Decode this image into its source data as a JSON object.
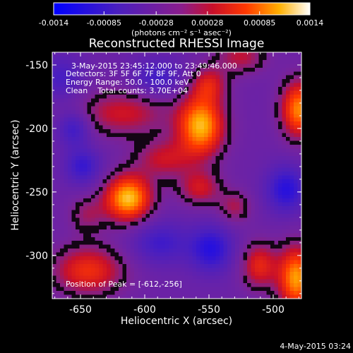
{
  "chart_data": {
    "type": "heatmap",
    "title": "Reconstructed RHESSI Image",
    "xlabel": "Heliocentric X (arcsec)",
    "ylabel": "Heliocentric Y (arcsec)",
    "xlim": [
      -672,
      -478
    ],
    "ylim": [
      -334,
      -140
    ],
    "x_ticks": [
      -650,
      -600,
      -550,
      -500
    ],
    "x_tick_labels": [
      "-650",
      "-600",
      "-550",
      "-500"
    ],
    "y_ticks": [
      -150,
      -200,
      -250,
      -300
    ],
    "y_tick_labels": [
      "-150",
      "-200",
      "-250",
      "-300"
    ],
    "colorbar": {
      "range": [
        -0.0014,
        0.0014
      ],
      "tick_values": [
        -0.0014,
        -0.00085,
        -0.00028,
        0.00028,
        0.00085,
        0.0014
      ],
      "tick_labels": [
        "-0.0014",
        "-0.00085",
        "-0.00028",
        "0.00028",
        "0.00085",
        "0.0014"
      ],
      "unit_label": "(photons cm⁻² s⁻¹ asec⁻²)"
    },
    "annotations": [
      "3-May-2015 23:45:12.000 to 23:49:46.000",
      "Detectors: 3F 5F 6F 7F 8F 9F, Att 0",
      "Energy Range: 50.0 - 100.0 keV",
      "Clean    Total counts: 3.70E+04"
    ],
    "peak_text": "Position of Peak = [-612,-256]",
    "peak_position": [
      -612,
      -256
    ],
    "colormap": "red-temperature",
    "grid": false,
    "sources": [
      {
        "x": -613,
        "y": -255,
        "sx": 13,
        "sy": 13,
        "amp": 1.0
      },
      {
        "x": -556,
        "y": -198,
        "sx": 13,
        "sy": 17,
        "amp": 0.95
      },
      {
        "x": -585,
        "y": -224,
        "sx": 16,
        "sy": 11,
        "amp": 0.42
      },
      {
        "x": -557,
        "y": -247,
        "sx": 12,
        "sy": 10,
        "amp": 0.45
      },
      {
        "x": -480,
        "y": -185,
        "sx": 10,
        "sy": 16,
        "amp": 0.85
      },
      {
        "x": -482,
        "y": -318,
        "sx": 10,
        "sy": 18,
        "amp": 0.9
      },
      {
        "x": -511,
        "y": -308,
        "sx": 10,
        "sy": 13,
        "amp": 0.55
      },
      {
        "x": -617,
        "y": -188,
        "sx": 26,
        "sy": 13,
        "amp": 0.45
      },
      {
        "x": -644,
        "y": -312,
        "sx": 20,
        "sy": 14,
        "amp": 0.6
      },
      {
        "x": -645,
        "y": -268,
        "sx": 10,
        "sy": 10,
        "amp": 0.3
      },
      {
        "x": -525,
        "y": -143,
        "sx": 14,
        "sy": 10,
        "amp": 0.4
      },
      {
        "x": -530,
        "y": -262,
        "sx": 9,
        "sy": 9,
        "amp": 0.35
      },
      {
        "x": -550,
        "y": -165,
        "sx": 10,
        "sy": 10,
        "amp": 0.45
      },
      {
        "x": -655,
        "y": -200,
        "sx": 9,
        "sy": 10,
        "amp": -0.45
      },
      {
        "x": -648,
        "y": -230,
        "sx": 10,
        "sy": 10,
        "amp": -0.45
      },
      {
        "x": -588,
        "y": -290,
        "sx": 16,
        "sy": 12,
        "amp": -0.4
      },
      {
        "x": -548,
        "y": -295,
        "sx": 12,
        "sy": 13,
        "amp": -0.55
      },
      {
        "x": -490,
        "y": -248,
        "sx": 11,
        "sy": 13,
        "amp": -0.55
      },
      {
        "x": -590,
        "y": -160,
        "sx": 14,
        "sy": 10,
        "amp": -0.4
      },
      {
        "x": -665,
        "y": -160,
        "sx": 12,
        "sy": 12,
        "amp": -0.35
      }
    ],
    "background_level": -0.18
  },
  "footer": {
    "timestamp": "4-May-2015 03:24"
  }
}
